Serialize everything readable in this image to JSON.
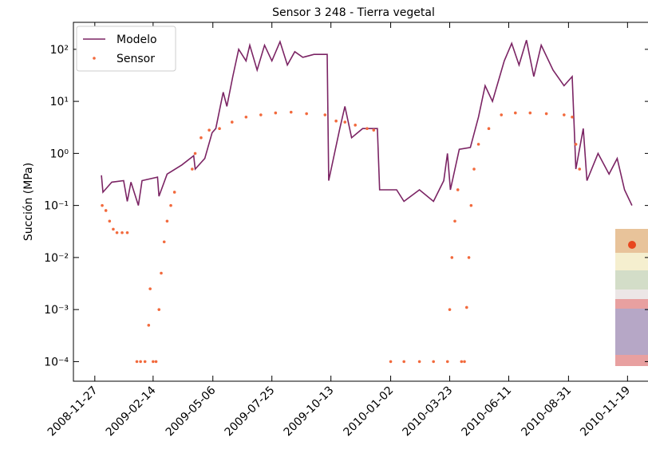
{
  "chart_data": {
    "type": "line-scatter",
    "title": "Sensor 3 248 - Tierra vegetal",
    "ylabel": "Succión (MPa)",
    "yscale": "log",
    "legend": "upper left",
    "xlim": [
      "2008-10-29",
      "2010-12-20"
    ],
    "xticks": [
      "2008-11-27",
      "2009-02-14",
      "2009-05-06",
      "2009-07-25",
      "2009-10-13",
      "2010-01-02",
      "2010-03-23",
      "2010-06-11",
      "2010-08-31",
      "2010-11-19"
    ],
    "ylim": [
      4.2e-05,
      330
    ],
    "yticks": [
      {
        "value": 0.0001,
        "label": "10⁻⁴"
      },
      {
        "value": 0.001,
        "label": "10⁻³"
      },
      {
        "value": 0.01,
        "label": "10⁻²"
      },
      {
        "value": 0.1,
        "label": "10⁻¹"
      },
      {
        "value": 1,
        "label": "10⁰"
      },
      {
        "value": 10,
        "label": "10¹"
      },
      {
        "value": 100,
        "label": "10²"
      }
    ],
    "series": [
      {
        "name": "Modelo",
        "kind": "line",
        "color": "#7b2464",
        "x": [
          "2008-12-06",
          "2008-12-08",
          "2008-12-20",
          "2009-01-05",
          "2009-01-10",
          "2009-01-15",
          "2009-01-25",
          "2009-01-30",
          "2009-02-20",
          "2009-02-22",
          "2009-03-05",
          "2009-03-25",
          "2009-04-10",
          "2009-04-12",
          "2009-04-25",
          "2009-05-05",
          "2009-05-10",
          "2009-05-20",
          "2009-05-25",
          "2009-06-02",
          "2009-06-10",
          "2009-06-20",
          "2009-06-25",
          "2009-07-05",
          "2009-07-15",
          "2009-07-25",
          "2009-08-05",
          "2009-08-15",
          "2009-08-25",
          "2009-09-05",
          "2009-09-20",
          "2009-10-08",
          "2009-10-10",
          "2009-10-25",
          "2009-11-01",
          "2009-11-10",
          "2009-11-25",
          "2009-12-15",
          "2009-12-18",
          "2010-01-10",
          "2010-01-20",
          "2010-02-10",
          "2010-03-01",
          "2010-03-15",
          "2010-03-20",
          "2010-03-24",
          "2010-04-05",
          "2010-04-20",
          "2010-05-01",
          "2010-05-10",
          "2010-05-20",
          "2010-06-05",
          "2010-06-15",
          "2010-06-25",
          "2010-07-05",
          "2010-07-15",
          "2010-07-25",
          "2010-08-10",
          "2010-08-25",
          "2010-09-05",
          "2010-09-10",
          "2010-09-20",
          "2010-09-25",
          "2010-10-10",
          "2010-10-25",
          "2010-11-05",
          "2010-11-15",
          "2010-11-25"
        ],
        "values": [
          0.38,
          0.18,
          0.28,
          0.3,
          0.12,
          0.28,
          0.1,
          0.3,
          0.35,
          0.15,
          0.4,
          0.6,
          0.9,
          0.5,
          0.8,
          2.5,
          3,
          15,
          8,
          30,
          100,
          60,
          120,
          40,
          120,
          60,
          140,
          50,
          90,
          70,
          80,
          80,
          0.3,
          3,
          8,
          2,
          3,
          3,
          0.2,
          0.2,
          0.12,
          0.2,
          0.12,
          0.3,
          1,
          0.2,
          1.2,
          1.3,
          5,
          20,
          10,
          60,
          130,
          50,
          150,
          30,
          120,
          40,
          20,
          30,
          0.5,
          3,
          0.3,
          1,
          0.4,
          0.8,
          0.2,
          0.1
        ]
      },
      {
        "name": "Sensor",
        "kind": "scatter",
        "color": "#f26a3d",
        "x": [
          "2008-12-07",
          "2008-12-12",
          "2008-12-17",
          "2008-12-22",
          "2008-12-27",
          "2009-01-03",
          "2009-01-10",
          "2009-01-23",
          "2009-01-28",
          "2009-02-03",
          "2009-02-08",
          "2009-02-10",
          "2009-02-14",
          "2009-02-18",
          "2009-02-22",
          "2009-02-25",
          "2009-03-01",
          "2009-03-05",
          "2009-03-10",
          "2009-03-15",
          "2009-04-08",
          "2009-04-12",
          "2009-04-20",
          "2009-05-01",
          "2009-05-15",
          "2009-06-01",
          "2009-06-20",
          "2009-07-10",
          "2009-07-30",
          "2009-08-20",
          "2009-09-10",
          "2009-10-05",
          "2009-10-20",
          "2009-11-01",
          "2009-11-15",
          "2009-12-01",
          "2009-12-10",
          "2010-01-02",
          "2010-01-20",
          "2010-02-10",
          "2010-03-01",
          "2010-03-20",
          "2010-03-23",
          "2010-03-26",
          "2010-03-30",
          "2010-04-03",
          "2010-04-08",
          "2010-04-12",
          "2010-04-15",
          "2010-04-18",
          "2010-04-21",
          "2010-04-25",
          "2010-05-01",
          "2010-05-15",
          "2010-06-01",
          "2010-06-20",
          "2010-07-10",
          "2010-08-01",
          "2010-08-25",
          "2010-09-05",
          "2010-09-10",
          "2010-09-15"
        ],
        "values": [
          0.1,
          0.08,
          0.05,
          0.035,
          0.03,
          0.03,
          0.03,
          0.0001,
          0.0001,
          0.0001,
          0.0005,
          0.0025,
          0.0001,
          0.0001,
          0.001,
          0.005,
          0.02,
          0.05,
          0.1,
          0.18,
          0.5,
          1,
          2,
          2.8,
          3,
          4,
          5,
          5.5,
          6,
          6.2,
          5.8,
          5.5,
          4.2,
          4,
          3.5,
          3,
          2.8,
          0.0001,
          0.0001,
          0.0001,
          0.0001,
          0.0001,
          0.001,
          0.01,
          0.05,
          0.2,
          0.0001,
          0.0001,
          0.0011,
          0.01,
          0.1,
          0.5,
          1.5,
          3,
          5.5,
          6,
          6,
          5.8,
          5.5,
          5,
          1.5,
          0.5
        ]
      }
    ]
  }
}
